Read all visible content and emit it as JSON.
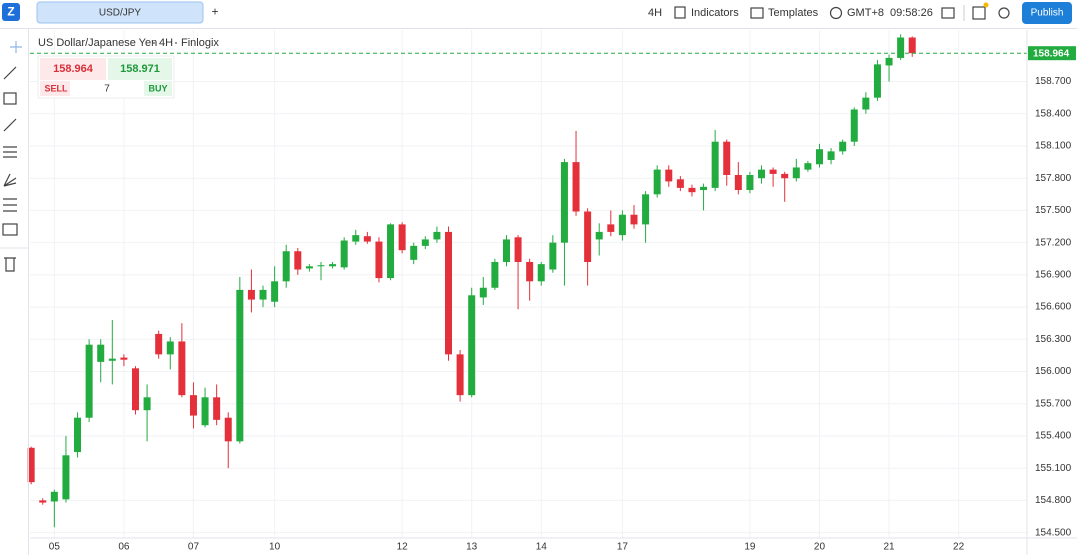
{
  "header": {
    "symbol_tab": "USD/JPY",
    "add_tab": "+",
    "interval": "4H",
    "indicators": "Indicators",
    "templates": "Templates",
    "timezone": "GMT+8",
    "clock": "09:58:26",
    "publish": "Publish"
  },
  "legend": {
    "name": "US Dollar/Japanese Yen",
    "interval": "4H",
    "source": "Finlogix"
  },
  "trade": {
    "sell_price": "158.964",
    "buy_price": "158.971",
    "sell": "SELL",
    "quantity": "7",
    "buy": "BUY"
  },
  "chart_data": {
    "type": "candlestick",
    "up_color": "#22ab3f",
    "down_color": "#e3303a",
    "grid": true,
    "xlim": [
      -0.1,
      85.9
    ],
    "xticks": [
      {
        "value": 2,
        "label": "05"
      },
      {
        "value": 8,
        "label": "06"
      },
      {
        "value": 14,
        "label": "07"
      },
      {
        "value": 21,
        "label": "10"
      },
      {
        "value": 32,
        "label": "12"
      },
      {
        "value": 38,
        "label": "13"
      },
      {
        "value": 44,
        "label": "14"
      },
      {
        "value": 51,
        "label": "17"
      },
      {
        "value": 62,
        "label": "19"
      },
      {
        "value": 68,
        "label": "20"
      },
      {
        "value": 74,
        "label": "21"
      },
      {
        "value": 80,
        "label": "22"
      }
    ],
    "ylim": [
      154.45,
      159.18
    ],
    "yticks": [
      {
        "value": 154.5,
        "label": "154.500"
      },
      {
        "value": 154.8,
        "label": "154.800"
      },
      {
        "value": 155.1,
        "label": "155.100"
      },
      {
        "value": 155.4,
        "label": "155.400"
      },
      {
        "value": 155.7,
        "label": "155.700"
      },
      {
        "value": 156.0,
        "label": "156.000"
      },
      {
        "value": 156.3,
        "label": "156.300"
      },
      {
        "value": 156.6,
        "label": "156.600"
      },
      {
        "value": 156.9,
        "label": "156.900"
      },
      {
        "value": 157.2,
        "label": "157.200"
      },
      {
        "value": 157.5,
        "label": "157.500"
      },
      {
        "value": 157.8,
        "label": "157.800"
      },
      {
        "value": 158.1,
        "label": "158.100"
      },
      {
        "value": 158.4,
        "label": "158.400"
      },
      {
        "value": 158.7,
        "label": "158.700"
      }
    ],
    "open": [
      155.29,
      154.8,
      154.79,
      154.81,
      155.25,
      155.57,
      156.09,
      156.1,
      156.13,
      156.03,
      155.64,
      156.35,
      156.16,
      156.28,
      155.78,
      155.5,
      155.76,
      155.57,
      155.35,
      156.76,
      156.67,
      156.65,
      156.84,
      157.12,
      156.96,
      156.98,
      156.98,
      156.97,
      157.21,
      157.26,
      157.21,
      156.87,
      157.37,
      157.04,
      157.17,
      157.23,
      157.3,
      156.16,
      155.78,
      156.69,
      156.78,
      157.02,
      157.25,
      157.02,
      156.84,
      156.95,
      157.2,
      157.95,
      157.49,
      157.23,
      157.37,
      157.27,
      157.46,
      157.37,
      157.65,
      157.88,
      157.79,
      157.71,
      157.69,
      157.71,
      158.14,
      157.83,
      157.69,
      157.8,
      157.88,
      157.84,
      157.8,
      157.88,
      157.93,
      157.97,
      158.05,
      158.14,
      158.44,
      158.55,
      158.85,
      158.92,
      159.11
    ],
    "high": [
      155.3,
      154.82,
      154.9,
      155.4,
      155.62,
      156.3,
      156.3,
      156.48,
      156.16,
      156.05,
      155.88,
      156.38,
      156.32,
      156.45,
      155.9,
      155.85,
      155.88,
      155.62,
      156.88,
      156.95,
      156.8,
      156.98,
      157.18,
      157.15,
      157.0,
      157.02,
      157.02,
      157.25,
      157.32,
      157.3,
      157.25,
      157.38,
      157.39,
      157.2,
      157.26,
      157.35,
      157.35,
      156.2,
      156.78,
      156.88,
      157.05,
      157.27,
      157.27,
      157.05,
      157.02,
      157.27,
      157.98,
      158.24,
      157.52,
      157.38,
      157.5,
      157.5,
      157.55,
      157.68,
      157.92,
      157.92,
      157.82,
      157.74,
      157.75,
      158.25,
      158.16,
      157.95,
      157.86,
      157.92,
      157.9,
      157.86,
      157.98,
      157.96,
      158.12,
      158.08,
      158.16,
      158.46,
      158.6,
      158.9,
      158.95,
      159.14,
      159.12
    ],
    "low": [
      154.95,
      154.76,
      154.55,
      154.78,
      155.2,
      155.53,
      155.9,
      155.88,
      156.05,
      155.6,
      155.35,
      156.12,
      156.02,
      155.76,
      155.47,
      155.48,
      155.5,
      155.1,
      155.33,
      156.55,
      156.6,
      156.6,
      156.78,
      156.9,
      156.93,
      156.85,
      156.96,
      156.95,
      157.18,
      157.19,
      156.83,
      156.85,
      157.1,
      157.0,
      157.14,
      157.2,
      156.1,
      155.72,
      155.76,
      156.62,
      156.76,
      156.98,
      156.58,
      156.66,
      156.8,
      156.92,
      156.8,
      157.45,
      156.8,
      157.08,
      157.26,
      157.22,
      157.33,
      157.2,
      157.62,
      157.72,
      157.68,
      157.63,
      157.5,
      157.68,
      157.73,
      157.65,
      157.66,
      157.75,
      157.72,
      157.58,
      157.77,
      157.86,
      157.9,
      157.93,
      158.02,
      158.1,
      158.4,
      158.52,
      158.7,
      158.9,
      158.93
    ],
    "close": [
      154.97,
      154.78,
      154.88,
      155.22,
      155.57,
      156.25,
      156.25,
      156.12,
      156.11,
      155.64,
      155.76,
      156.16,
      156.28,
      155.78,
      155.59,
      155.76,
      155.55,
      155.35,
      156.76,
      156.67,
      156.76,
      156.84,
      157.12,
      156.95,
      156.98,
      156.99,
      157.0,
      157.22,
      157.27,
      157.21,
      156.87,
      157.37,
      157.13,
      157.17,
      157.23,
      157.3,
      156.16,
      155.78,
      156.71,
      156.78,
      157.02,
      157.23,
      157.02,
      156.84,
      157.0,
      157.2,
      157.95,
      157.49,
      157.02,
      157.3,
      157.3,
      157.46,
      157.37,
      157.65,
      157.88,
      157.77,
      157.71,
      157.67,
      157.72,
      158.14,
      157.83,
      157.69,
      157.83,
      157.88,
      157.84,
      157.8,
      157.9,
      157.94,
      158.07,
      158.05,
      158.14,
      158.44,
      158.55,
      158.86,
      158.92,
      159.11,
      158.964
    ]
  }
}
